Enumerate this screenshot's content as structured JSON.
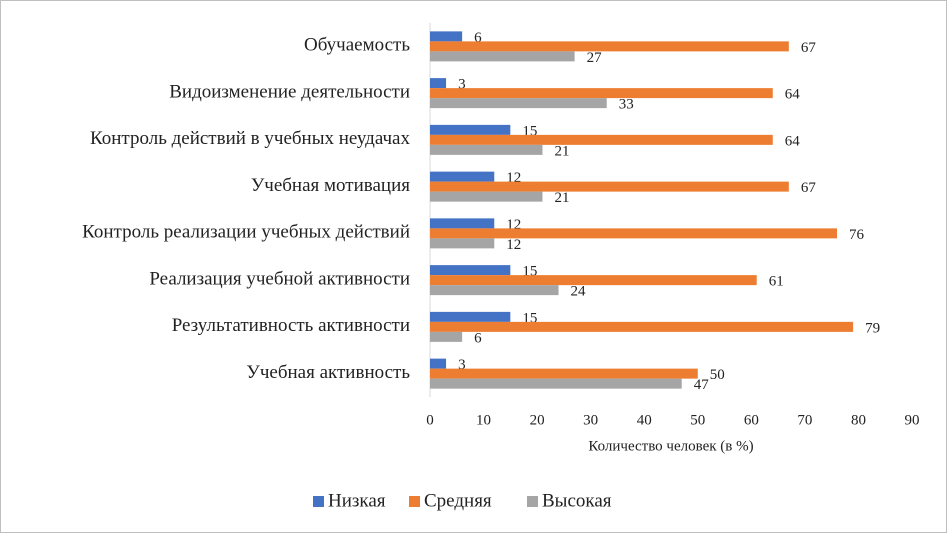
{
  "chart_data": {
    "type": "hbar",
    "categories": [
      "Обучаемость",
      "Видоизменение деятельности",
      "Контроль действий в учебных неудачах",
      "Учебная мотивация",
      "Контроль реализации учебных действий",
      "Реализация учебной активности",
      "Результативность активности",
      "Учебная активность"
    ],
    "series": [
      {
        "name": "Низкая",
        "color": "#4472c4",
        "values": [
          6,
          3,
          15,
          12,
          12,
          15,
          15,
          3
        ]
      },
      {
        "name": "Средняя",
        "color": "#ed7d31",
        "values": [
          67,
          64,
          64,
          67,
          76,
          61,
          79,
          50
        ]
      },
      {
        "name": "Высокая",
        "color": "#a5a5a5",
        "values": [
          27,
          33,
          21,
          21,
          12,
          24,
          6,
          47
        ]
      }
    ],
    "xlim": [
      0,
      90
    ],
    "xticks": [
      0,
      10,
      20,
      30,
      40,
      50,
      60,
      70,
      80,
      90
    ],
    "x_label": "Количество человек (в %)",
    "legend": "bottom"
  }
}
